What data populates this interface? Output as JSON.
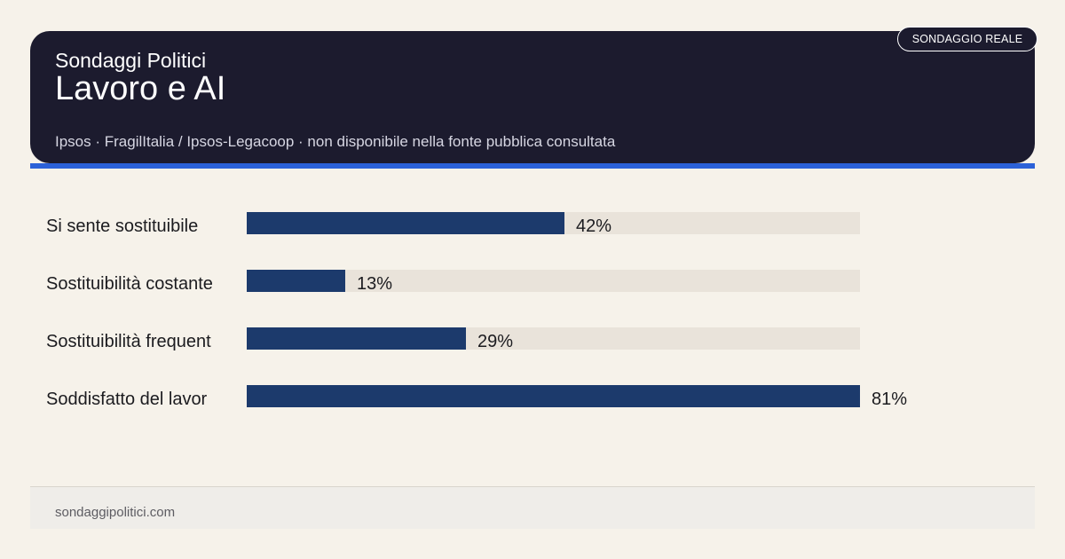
{
  "header": {
    "brand": "Sondaggi Politici",
    "title": "Lavoro e AI",
    "subtitle": "Ipsos · FragilItalia / Ipsos-Legacoop · non disponibile nella fonte pubblica consultata",
    "badge": "SONDAGGIO REALE"
  },
  "footer": {
    "site": "sondaggipolitici.com"
  },
  "colors": {
    "header_bg": "#1c1b2e",
    "accent": "#2b61d8",
    "bar": "#1c3a6c",
    "track": "#e9e3da",
    "page_bg": "#f6f2ea"
  },
  "chart_data": {
    "type": "bar",
    "orientation": "horizontal",
    "categories": [
      "Si sente sostituibile",
      "Sostituibilità costante",
      "Sostituibilità frequent",
      "Soddisfatto del lavor"
    ],
    "values": [
      42,
      13,
      29,
      81
    ],
    "value_labels": [
      "42%",
      "13%",
      "29%",
      "81%"
    ],
    "unit": "%",
    "xlim": [
      0,
      81
    ],
    "grid": false,
    "legend": "none"
  }
}
